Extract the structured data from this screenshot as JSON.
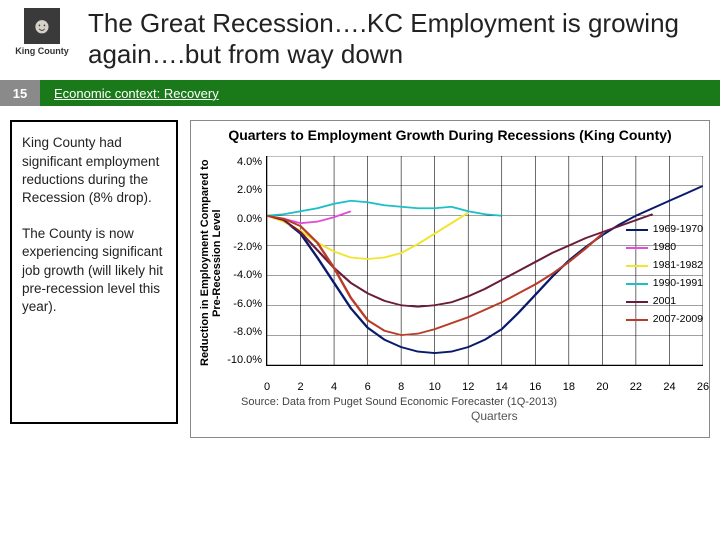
{
  "logo": {
    "name": "King County",
    "icon_glyph": "☺"
  },
  "title": "The Great Recession….KC Employment is growing again….but from way down",
  "page_number": "15",
  "bar_label": "Economic context:  Recovery",
  "bar_bg": "#1a7a1a",
  "sidebar": {
    "para1": "King County had significant employment reductions during the Recession (8% drop).",
    "para2": "The County is now experiencing significant job growth (will likely hit pre-recession level this year)."
  },
  "chart": {
    "type": "line",
    "title": "Quarters to Employment Growth During Recessions (King County)",
    "ylabel": "Reduction in Employment Compared to Pre-Recession Level",
    "xlabel": "Quarters",
    "source": "Source: Data from Puget Sound Economic Forecaster (1Q-2013)",
    "ylim": [
      -10,
      4
    ],
    "yticks": [
      "4.0%",
      "2.0%",
      "0.0%",
      "-2.0%",
      "-4.0%",
      "-6.0%",
      "-8.0%",
      "-10.0%"
    ],
    "xlim": [
      0,
      26
    ],
    "xticks": [
      0,
      2,
      4,
      6,
      8,
      10,
      12,
      14,
      16,
      18,
      20,
      22,
      24,
      26
    ],
    "background": "#ffffff",
    "grid_color": "#000000",
    "series": [
      {
        "label": "1969-1970",
        "color": "#0a1a6b",
        "x": [
          0,
          1,
          2,
          3,
          4,
          5,
          6,
          7,
          8,
          9,
          10,
          11,
          12,
          13,
          14,
          15,
          16,
          17,
          18,
          19,
          20,
          21,
          22,
          23,
          24,
          25,
          26
        ],
        "y": [
          0,
          -0.3,
          -1.2,
          -2.8,
          -4.5,
          -6.2,
          -7.5,
          -8.3,
          -8.8,
          -9.1,
          -9.2,
          -9.1,
          -8.8,
          -8.3,
          -7.6,
          -6.5,
          -5.3,
          -4.1,
          -3.0,
          -2.1,
          -1.3,
          -0.6,
          0.0,
          0.5,
          1.0,
          1.5,
          2.0
        ]
      },
      {
        "label": "1980",
        "color": "#e34bd8",
        "x": [
          0,
          1,
          2,
          3,
          4,
          5
        ],
        "y": [
          0,
          -0.2,
          -0.5,
          -0.4,
          -0.1,
          0.3
        ]
      },
      {
        "label": "1981-1982",
        "color": "#f2e431",
        "x": [
          0,
          1,
          2,
          3,
          4,
          5,
          6,
          7,
          8,
          9,
          10,
          11,
          12
        ],
        "y": [
          0,
          -0.4,
          -1.0,
          -1.8,
          -2.4,
          -2.8,
          -2.9,
          -2.8,
          -2.5,
          -1.9,
          -1.2,
          -0.5,
          0.2
        ]
      },
      {
        "label": "1990-1991",
        "color": "#1fbfc7",
        "x": [
          0,
          1,
          2,
          3,
          4,
          5,
          6,
          7,
          8,
          9,
          10,
          11,
          12,
          13,
          14
        ],
        "y": [
          0,
          0.1,
          0.3,
          0.5,
          0.8,
          1.0,
          0.9,
          0.7,
          0.6,
          0.5,
          0.5,
          0.6,
          0.3,
          0.1,
          0.0
        ]
      },
      {
        "label": "2001",
        "color": "#6a1b3b",
        "x": [
          0,
          1,
          2,
          3,
          4,
          5,
          6,
          7,
          8,
          9,
          10,
          11,
          12,
          13,
          14,
          15,
          16,
          17,
          18,
          19,
          20,
          21,
          22,
          23
        ],
        "y": [
          0,
          -0.3,
          -1.1,
          -2.3,
          -3.5,
          -4.5,
          -5.2,
          -5.7,
          -6.0,
          -6.1,
          -6.0,
          -5.8,
          -5.4,
          -4.9,
          -4.3,
          -3.7,
          -3.1,
          -2.5,
          -2.0,
          -1.5,
          -1.1,
          -0.7,
          -0.3,
          0.1
        ]
      },
      {
        "label": "2007-2009",
        "color": "#b83c28",
        "x": [
          0,
          1,
          2,
          3,
          4,
          5,
          6,
          7,
          8,
          9,
          10,
          11,
          12,
          13,
          14,
          15,
          16,
          17,
          18,
          19,
          20
        ],
        "y": [
          0,
          -0.2,
          -0.7,
          -1.8,
          -3.5,
          -5.5,
          -7.0,
          -7.7,
          -8.0,
          -7.9,
          -7.6,
          -7.2,
          -6.8,
          -6.3,
          -5.8,
          -5.2,
          -4.6,
          -3.9,
          -3.1,
          -2.2,
          -1.2
        ]
      }
    ]
  }
}
